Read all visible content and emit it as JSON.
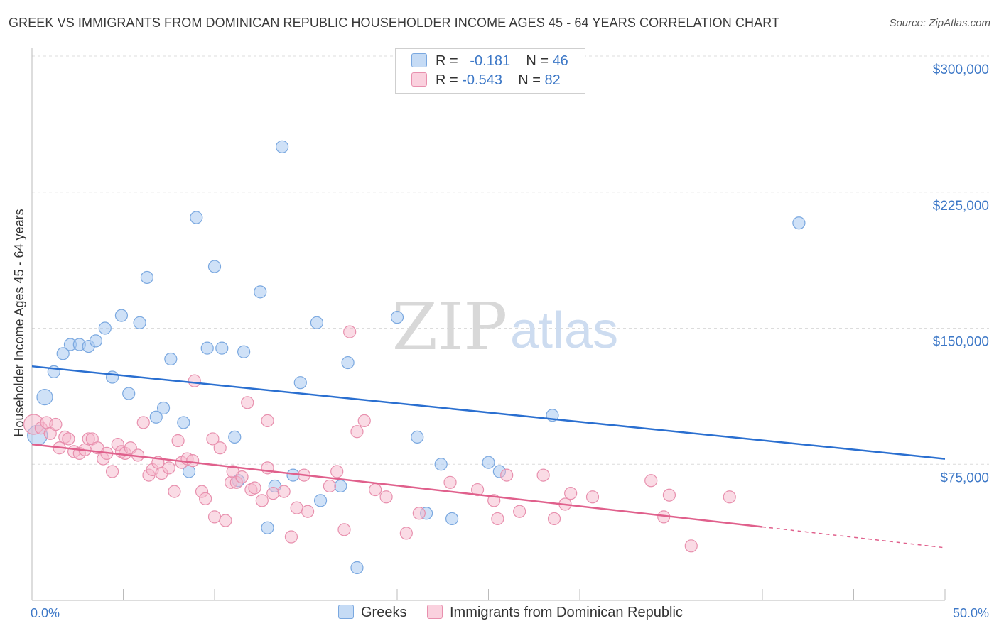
{
  "title": "GREEK VS IMMIGRANTS FROM DOMINICAN REPUBLIC HOUSEHOLDER INCOME AGES 45 - 64 YEARS CORRELATION CHART",
  "source": "Source: ZipAtlas.com",
  "watermark": {
    "zip": "ZIP",
    "atlas": "atlas"
  },
  "legend": {
    "rows": [
      {
        "r_label": "R =",
        "r_value": "-0.181",
        "n_label": "N =",
        "n_value": "46",
        "color": "#a8c8f0"
      },
      {
        "r_label": "R =",
        "r_value": "-0.543",
        "n_label": "N =",
        "n_value": "82",
        "color": "#f5b8cc"
      }
    ]
  },
  "bottom_legend": [
    {
      "label": "Greeks",
      "color": "#a8c8f0"
    },
    {
      "label": "Immigrants from Dominican Republic",
      "color": "#f5b8cc"
    }
  ],
  "chart_data": {
    "type": "scatter",
    "title": "GREEK VS IMMIGRANTS FROM DOMINICAN REPUBLIC HOUSEHOLDER INCOME AGES 45 - 64 YEARS CORRELATION CHART",
    "xlabel": "",
    "ylabel": "Householder Income Ages 45 - 64 years",
    "xlim": [
      0,
      50
    ],
    "ylim": [
      0,
      315000
    ],
    "x_tick_labels": [
      "0.0%",
      "50.0%"
    ],
    "y_ticks": [
      75000,
      150000,
      225000,
      300000
    ],
    "y_tick_labels": [
      "$75,000",
      "$150,000",
      "$225,000",
      "$300,000"
    ],
    "grid": true,
    "series": [
      {
        "name": "Greeks",
        "color": "#a8c8f0",
        "stroke": "#7aa8e0",
        "trend_color": "#2a6fd0",
        "trend": {
          "x0": 0,
          "y0": 129000,
          "x1": 50,
          "y1": 78000
        },
        "points": [
          [
            0.3,
            91000
          ],
          [
            0.7,
            112000
          ],
          [
            1.2,
            126000
          ],
          [
            1.7,
            136000
          ],
          [
            2.1,
            141000
          ],
          [
            2.6,
            141000
          ],
          [
            3.1,
            140000
          ],
          [
            3.5,
            143000
          ],
          [
            4.0,
            150000
          ],
          [
            4.4,
            123000
          ],
          [
            4.9,
            157000
          ],
          [
            5.3,
            114000
          ],
          [
            5.9,
            153000
          ],
          [
            6.3,
            178000
          ],
          [
            6.8,
            101000
          ],
          [
            7.2,
            106000
          ],
          [
            7.6,
            133000
          ],
          [
            8.3,
            98000
          ],
          [
            8.6,
            71000
          ],
          [
            9.0,
            211000
          ],
          [
            9.6,
            139000
          ],
          [
            10.0,
            184000
          ],
          [
            10.4,
            139000
          ],
          [
            11.1,
            90000
          ],
          [
            11.3,
            66000
          ],
          [
            11.6,
            137000
          ],
          [
            12.5,
            170000
          ],
          [
            12.9,
            40000
          ],
          [
            13.3,
            63000
          ],
          [
            13.7,
            250000
          ],
          [
            14.3,
            69000
          ],
          [
            14.7,
            120000
          ],
          [
            15.6,
            153000
          ],
          [
            15.8,
            55000
          ],
          [
            16.9,
            63000
          ],
          [
            17.3,
            131000
          ],
          [
            17.8,
            18000
          ],
          [
            20.0,
            156000
          ],
          [
            21.1,
            90000
          ],
          [
            21.6,
            48000
          ],
          [
            22.4,
            75000
          ],
          [
            23.0,
            45000
          ],
          [
            25.0,
            76000
          ],
          [
            25.6,
            71000
          ],
          [
            28.5,
            102000
          ],
          [
            42.0,
            208000
          ]
        ]
      },
      {
        "name": "Immigrants from Dominican Republic",
        "color": "#f5b8cc",
        "stroke": "#e890ae",
        "trend_color": "#e0608c",
        "trend": {
          "x0": 0,
          "y0": 86000,
          "x1": 40,
          "y1": 40500
        },
        "trend_dashed": {
          "x0": 40,
          "y0": 40500,
          "x1": 50,
          "y1": 29000
        },
        "points": [
          [
            0.1,
            97000
          ],
          [
            0.5,
            95000
          ],
          [
            0.8,
            98000
          ],
          [
            1.0,
            92000
          ],
          [
            1.3,
            97000
          ],
          [
            1.5,
            84000
          ],
          [
            1.8,
            90000
          ],
          [
            2.0,
            89000
          ],
          [
            2.3,
            82000
          ],
          [
            2.6,
            81000
          ],
          [
            2.9,
            83000
          ],
          [
            3.1,
            89000
          ],
          [
            3.3,
            89000
          ],
          [
            3.6,
            84000
          ],
          [
            3.9,
            78000
          ],
          [
            4.1,
            81000
          ],
          [
            4.4,
            71000
          ],
          [
            4.7,
            86000
          ],
          [
            4.9,
            82000
          ],
          [
            5.1,
            81000
          ],
          [
            5.4,
            84000
          ],
          [
            5.8,
            80000
          ],
          [
            6.1,
            98000
          ],
          [
            6.4,
            69000
          ],
          [
            6.6,
            72000
          ],
          [
            6.9,
            76000
          ],
          [
            7.1,
            70000
          ],
          [
            7.5,
            73000
          ],
          [
            7.8,
            60000
          ],
          [
            8.0,
            88000
          ],
          [
            8.2,
            76000
          ],
          [
            8.5,
            78000
          ],
          [
            8.8,
            77000
          ],
          [
            8.9,
            121000
          ],
          [
            9.3,
            60000
          ],
          [
            9.5,
            56000
          ],
          [
            9.9,
            89000
          ],
          [
            10.0,
            46000
          ],
          [
            10.3,
            84000
          ],
          [
            10.6,
            44000
          ],
          [
            10.9,
            65000
          ],
          [
            11.0,
            71000
          ],
          [
            11.2,
            65000
          ],
          [
            11.5,
            68000
          ],
          [
            11.8,
            109000
          ],
          [
            12.0,
            61000
          ],
          [
            12.2,
            62000
          ],
          [
            12.6,
            55000
          ],
          [
            12.9,
            99000
          ],
          [
            12.9,
            73000
          ],
          [
            13.2,
            59000
          ],
          [
            13.8,
            60000
          ],
          [
            14.2,
            35000
          ],
          [
            14.5,
            51000
          ],
          [
            14.9,
            69000
          ],
          [
            15.1,
            49000
          ],
          [
            16.3,
            63000
          ],
          [
            16.7,
            71000
          ],
          [
            17.1,
            39000
          ],
          [
            17.4,
            148000
          ],
          [
            17.8,
            93000
          ],
          [
            18.2,
            99000
          ],
          [
            18.8,
            61000
          ],
          [
            19.4,
            57000
          ],
          [
            20.5,
            37000
          ],
          [
            21.2,
            48000
          ],
          [
            22.9,
            65000
          ],
          [
            24.4,
            61000
          ],
          [
            25.3,
            55000
          ],
          [
            25.5,
            45000
          ],
          [
            26.0,
            69000
          ],
          [
            26.7,
            49000
          ],
          [
            28.0,
            69000
          ],
          [
            28.6,
            45000
          ],
          [
            29.2,
            53000
          ],
          [
            29.5,
            59000
          ],
          [
            30.7,
            57000
          ],
          [
            33.9,
            66000
          ],
          [
            34.6,
            46000
          ],
          [
            34.9,
            58000
          ],
          [
            36.1,
            30000
          ],
          [
            38.2,
            57000
          ]
        ]
      }
    ]
  }
}
